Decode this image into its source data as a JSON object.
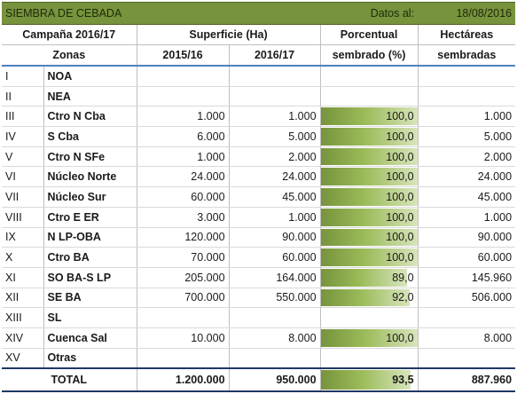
{
  "title": "SIEMBRA DE CEBADA",
  "date_label": "Datos al:",
  "date_value": "18/08/2016",
  "headers": {
    "campaign": "Campaña 2016/17",
    "surface": "Superficie (Ha)",
    "pct_line1": "Porcentual",
    "pct_line2": "sembrado (%)",
    "ha_line1": "Hectáreas",
    "ha_line2": "sembradas",
    "zonas": "Zonas",
    "y1": "2015/16",
    "y2": "2016/17"
  },
  "colors": {
    "title_bg": "#77933c",
    "bar_dark": "#77933c",
    "bar_light": "#d8e4bc",
    "header_rule": "#4f81bd"
  },
  "rows": [
    {
      "num": "I",
      "zona": "NOA",
      "s1": "",
      "s2": "",
      "pct": "",
      "pct_value": null,
      "ha": ""
    },
    {
      "num": "II",
      "zona": "NEA",
      "s1": "",
      "s2": "",
      "pct": "",
      "pct_value": null,
      "ha": ""
    },
    {
      "num": "III",
      "zona": "Ctro N Cba",
      "s1": "1.000",
      "s2": "1.000",
      "pct": "100,0",
      "pct_value": 100,
      "ha": "1.000"
    },
    {
      "num": "IV",
      "zona": "S Cba",
      "s1": "6.000",
      "s2": "5.000",
      "pct": "100,0",
      "pct_value": 100,
      "ha": "5.000"
    },
    {
      "num": "V",
      "zona": "Ctro N SFe",
      "s1": "1.000",
      "s2": "2.000",
      "pct": "100,0",
      "pct_value": 100,
      "ha": "2.000"
    },
    {
      "num": "VI",
      "zona": "Núcleo Norte",
      "s1": "24.000",
      "s2": "24.000",
      "pct": "100,0",
      "pct_value": 100,
      "ha": "24.000"
    },
    {
      "num": "VII",
      "zona": "Núcleo Sur",
      "s1": "60.000",
      "s2": "45.000",
      "pct": "100,0",
      "pct_value": 100,
      "ha": "45.000"
    },
    {
      "num": "VIII",
      "zona": "Ctro E ER",
      "s1": "3.000",
      "s2": "1.000",
      "pct": "100,0",
      "pct_value": 100,
      "ha": "1.000"
    },
    {
      "num": "IX",
      "zona": "N LP-OBA",
      "s1": "120.000",
      "s2": "90.000",
      "pct": "100,0",
      "pct_value": 100,
      "ha": "90.000"
    },
    {
      "num": "X",
      "zona": "Ctro BA",
      "s1": "70.000",
      "s2": "60.000",
      "pct": "100,0",
      "pct_value": 100,
      "ha": "60.000"
    },
    {
      "num": "XI",
      "zona": "SO BA-S LP",
      "s1": "205.000",
      "s2": "164.000",
      "pct": "89,0",
      "pct_value": 89,
      "ha": "145.960"
    },
    {
      "num": "XII",
      "zona": "SE BA",
      "s1": "700.000",
      "s2": "550.000",
      "pct": "92,0",
      "pct_value": 92,
      "ha": "506.000"
    },
    {
      "num": "XIII",
      "zona": "SL",
      "s1": "",
      "s2": "",
      "pct": "",
      "pct_value": null,
      "ha": ""
    },
    {
      "num": "XIV",
      "zona": "Cuenca Sal",
      "s1": "10.000",
      "s2": "8.000",
      "pct": "100,0",
      "pct_value": 100,
      "ha": "8.000"
    },
    {
      "num": "XV",
      "zona": "Otras",
      "s1": "",
      "s2": "",
      "pct": "",
      "pct_value": null,
      "ha": ""
    }
  ],
  "total": {
    "label": "TOTAL",
    "s1": "1.200.000",
    "s2": "950.000",
    "pct": "93,5",
    "pct_value": 93.5,
    "ha": "887.960"
  }
}
